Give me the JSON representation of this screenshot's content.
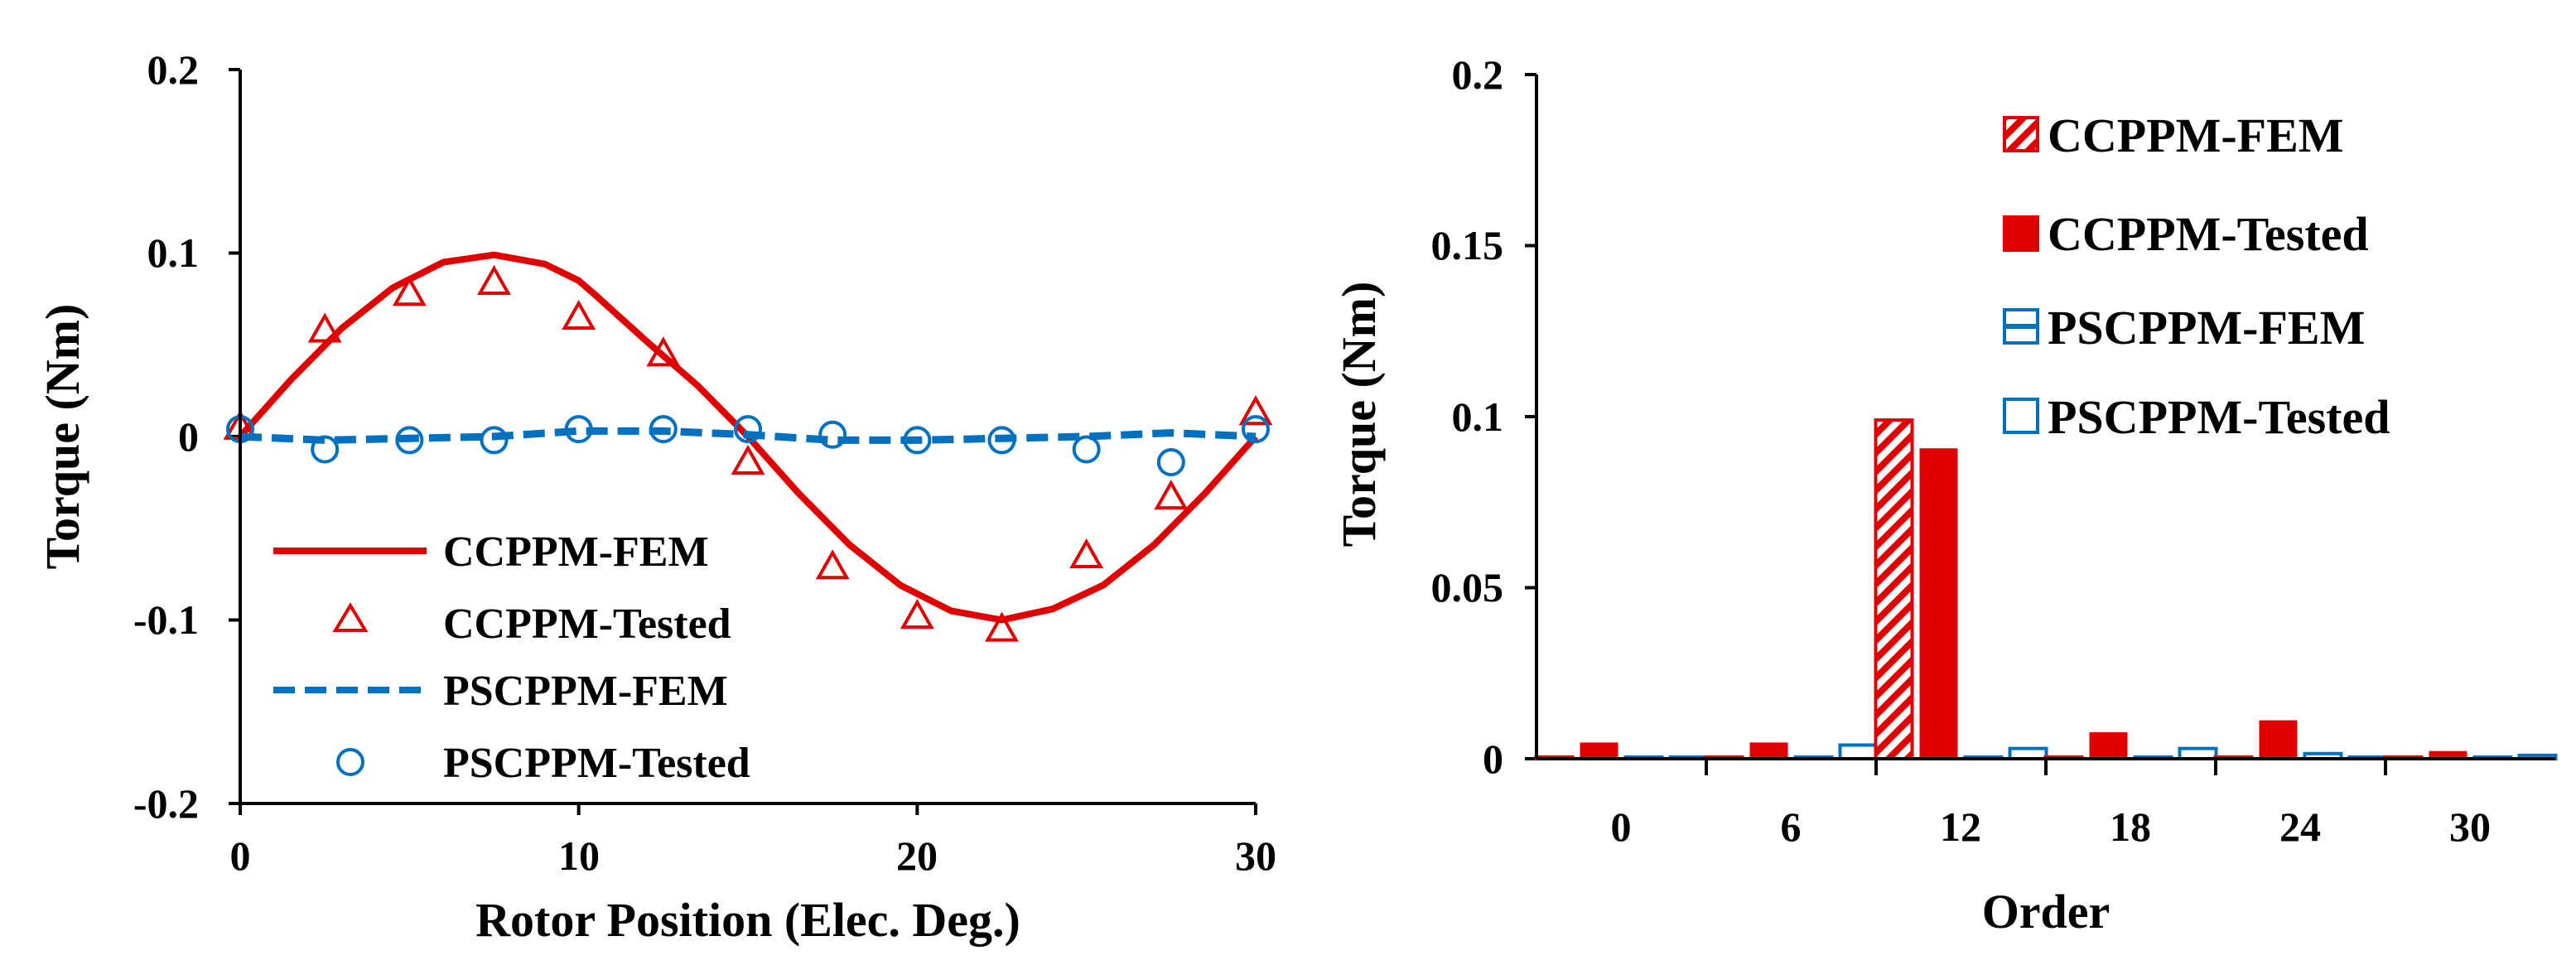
{
  "colors": {
    "red": "#E00000",
    "blue": "#0070C0",
    "axis": "#000000"
  },
  "chart_data": [
    {
      "type": "line",
      "xlabel": "Rotor Position (Elec. Deg.)",
      "ylabel": "Torque (Nm)",
      "xlim": [
        0,
        30
      ],
      "ylim": [
        -0.2,
        0.2
      ],
      "x_ticks": [
        0,
        10,
        20,
        30
      ],
      "x_tick_labels": [
        "0",
        "10",
        "20",
        "30"
      ],
      "y_ticks": [
        0.2,
        0.1,
        0,
        -0.1,
        -0.2
      ],
      "y_tick_labels": [
        "0.2",
        "0.1",
        "0",
        "-0.1",
        "-0.2"
      ],
      "legend_position": "bottom-left",
      "series": [
        {
          "name": "CCPPM-FEM",
          "style": "solid-line",
          "color": "#E00000",
          "x": [
            0,
            1.5,
            3,
            4.5,
            6,
            7.5,
            9,
            10,
            10.5,
            12,
            13.5,
            15,
            16.5,
            18,
            19.5,
            21,
            22.5,
            24,
            25.5,
            27,
            28.5,
            30
          ],
          "y": [
            0,
            0.031,
            0.059,
            0.081,
            0.095,
            0.099,
            0.094,
            0.085,
            0.077,
            0.052,
            0.028,
            0.0,
            -0.031,
            -0.059,
            -0.081,
            -0.095,
            -0.1,
            -0.094,
            -0.081,
            -0.059,
            -0.031,
            0
          ]
        },
        {
          "name": "CCPPM-Tested",
          "style": "triangle-markers",
          "color": "#E00000",
          "x": [
            0,
            2.5,
            5,
            7.5,
            10,
            12.5,
            15,
            17.5,
            20,
            22.5,
            25,
            27.5,
            30
          ],
          "y": [
            0.005,
            0.058,
            0.078,
            0.084,
            0.065,
            0.045,
            -0.014,
            -0.071,
            -0.098,
            -0.105,
            -0.065,
            -0.033,
            0.013
          ]
        },
        {
          "name": "PSCPPM-FEM",
          "style": "dashed-line",
          "color": "#0070C0",
          "x": [
            0,
            2.5,
            5,
            7.5,
            10,
            12.5,
            15,
            17.5,
            20,
            22.5,
            25,
            27.5,
            30
          ],
          "y": [
            0.0,
            -0.002,
            -0.001,
            0.0,
            0.003,
            0.003,
            0.001,
            -0.002,
            -0.002,
            -0.001,
            0.0,
            0.002,
            0.0
          ]
        },
        {
          "name": "PSCPPM-Tested",
          "style": "circle-markers",
          "color": "#0070C0",
          "x": [
            0,
            2.5,
            5,
            7.5,
            10,
            12.5,
            15,
            17.5,
            20,
            22.5,
            25,
            27.5,
            30
          ],
          "y": [
            0.004,
            -0.007,
            -0.002,
            -0.002,
            0.004,
            0.004,
            0.004,
            0.001,
            -0.002,
            -0.002,
            -0.007,
            -0.014,
            0.004
          ]
        }
      ]
    },
    {
      "type": "bar",
      "xlabel": "Order",
      "ylabel": "Torque (Nm)",
      "ylim": [
        0,
        0.2
      ],
      "y_ticks": [
        0.2,
        0.15,
        0.1,
        0.05,
        0
      ],
      "y_tick_labels": [
        "0.2",
        "0.15",
        "0.1",
        "0.05",
        "0"
      ],
      "categories": [
        "0",
        "6",
        "12",
        "18",
        "24",
        "30"
      ],
      "legend_position": "top-right",
      "series": [
        {
          "name": "CCPPM-FEM",
          "style": "hatched",
          "color": "#E00000",
          "values": [
            0.0005,
            0.0005,
            0.099,
            0.0005,
            0.0005,
            0.0005
          ]
        },
        {
          "name": "CCPPM-Tested",
          "style": "solid",
          "color": "#E00000",
          "values": [
            0.0045,
            0.0045,
            0.0905,
            0.0075,
            0.011,
            0.002
          ]
        },
        {
          "name": "PSCPPM-FEM",
          "style": "lined",
          "color": "#0070C0",
          "values": [
            0.0005,
            0.0005,
            0.0005,
            0.0005,
            0.0015,
            0.0005
          ]
        },
        {
          "name": "PSCPPM-Tested",
          "style": "hollow",
          "color": "#0070C0",
          "values": [
            0.0005,
            0.004,
            0.003,
            0.003,
            0.0005,
            0.001
          ]
        }
      ]
    }
  ]
}
